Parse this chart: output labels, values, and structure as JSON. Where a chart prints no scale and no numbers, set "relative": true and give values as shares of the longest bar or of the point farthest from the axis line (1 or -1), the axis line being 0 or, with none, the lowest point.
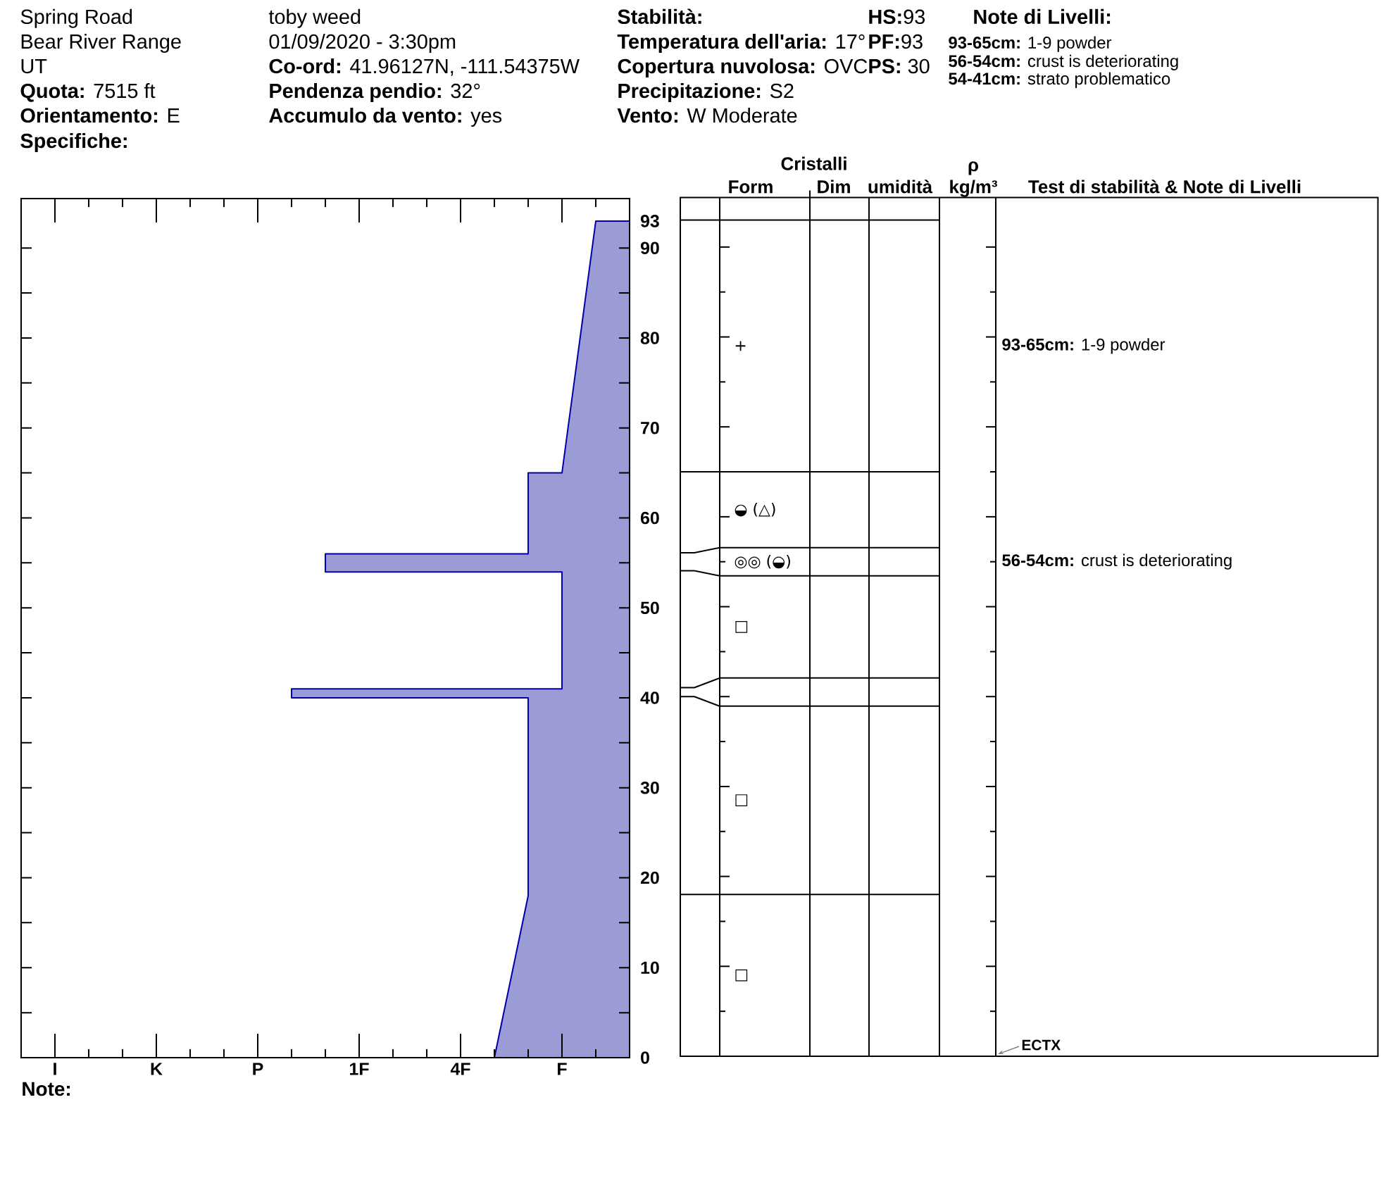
{
  "chart_data": [
    {
      "type": "area",
      "orientation": "horizontal",
      "relative": true,
      "ylim": [
        0,
        95.5
      ],
      "yticks": [
        0,
        {
          "value": 5,
          "label": null
        },
        10,
        {
          "value": 15,
          "label": null
        },
        20,
        {
          "value": 25,
          "label": null
        },
        30,
        {
          "value": 35,
          "label": null
        },
        40,
        {
          "value": 45,
          "label": null
        },
        50,
        {
          "value": 55,
          "label": null
        },
        60,
        {
          "value": 65,
          "label": null
        },
        70,
        {
          "value": 75,
          "label": null
        },
        80,
        {
          "value": 85,
          "label": null
        },
        90,
        93
      ],
      "series": [
        {
          "color": "#9b9bd6",
          "x": [
            93,
            65,
            65,
            56,
            56,
            54,
            54,
            41,
            41,
            40,
            40,
            18,
            0
          ],
          "values": [
            -0.1,
            -0.2,
            -0.3,
            -0.3,
            -0.9,
            -0.9,
            -0.2,
            -0.2,
            -1,
            -1,
            -0.3,
            -0.3,
            -0.4
          ]
        }
      ],
      "annotations": [
        "Spring Road",
        "Bear River Range",
        "UT",
        "**Quota:** 7515 ft",
        "**Orientamento:** E",
        "Specifiche:",
        "toby weed",
        "01/09/2020 - 3:30pm",
        "**Co-ord:** 41.96127N, -111.54375W",
        "**Pendenza pendio:** 32°",
        "**Accumulo da vento:** yes",
        "Stabilità:",
        "**Temperatura dell'aria:** 17°",
        "**Copertura nuvolosa:** OVC",
        "**Precipitazione:** S2",
        "**Vento:** W Moderate",
        "**HS:**93",
        "**PF:**93",
        "**PS:** 30",
        "Note di Livelli:",
        "**93-65cm:** 1-9 powder",
        "**56-54cm:** crust is deteriorating",
        "**54-41cm:** strato problematico",
        "I",
        "K",
        "P",
        "1F",
        "4F",
        "F",
        "Note:"
      ]
    },
    {
      "type": "other",
      "categories": [
        null,
        "Form",
        "Dim",
        "umidità",
        "ρ kg/m³",
        "Test di stabilità & Note di Livelli"
      ],
      "annotations": [
        "Cristalli",
        {
          "text": "+",
          "x": "Form"
        },
        {
          "text": "◒ (△)",
          "x": "Form"
        },
        {
          "text": "◎◎ (◒)",
          "x": "Form"
        },
        {
          "text": "□",
          "x": "Form"
        },
        {
          "text": "□",
          "x": "Form"
        },
        {
          "text": "□",
          "x": "Form"
        },
        {
          "text": "**93-65cm:** 1-9 powder",
          "x": "Test di stabilità & Note di Livelli"
        },
        {
          "text": "**56-54cm:** crust is deteriorating",
          "x": "Test di stabilità & Note di Livelli"
        },
        {
          "text": "ECTX",
          "x": "Test di stabilità & Note di Livelli"
        }
      ]
    }
  ]
}
